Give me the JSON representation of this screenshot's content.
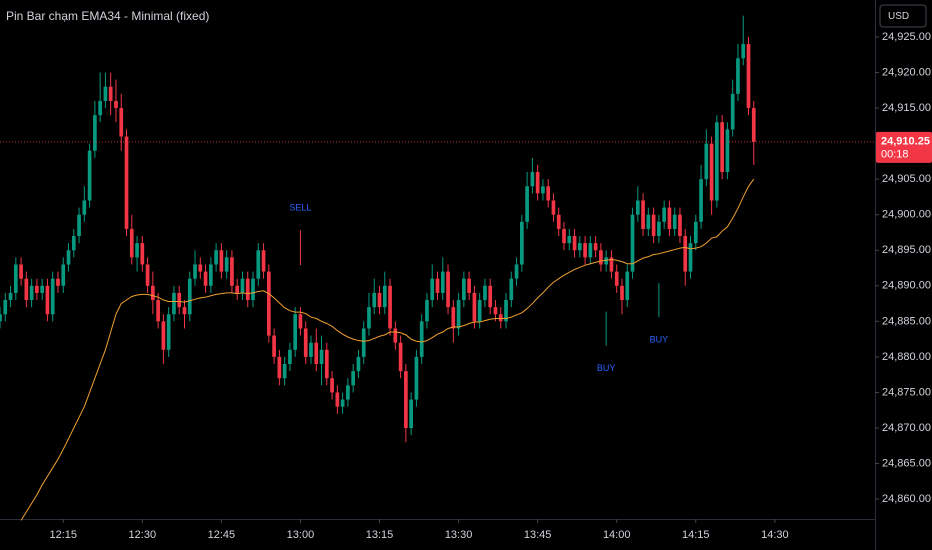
{
  "chart_data": {
    "type": "candlestick",
    "title": "Pin Bar chạm EMA34 - Minimal (fixed)",
    "currency": "USD",
    "x": [
      "12:03",
      "12:04",
      "12:05",
      "12:06",
      "12:07",
      "12:08",
      "12:09",
      "12:10",
      "12:11",
      "12:12",
      "12:13",
      "12:14",
      "12:15",
      "12:16",
      "12:17",
      "12:18",
      "12:19",
      "12:20",
      "12:21",
      "12:22",
      "12:23",
      "12:24",
      "12:25",
      "12:26",
      "12:27",
      "12:28",
      "12:29",
      "12:30",
      "12:31",
      "12:32",
      "12:33",
      "12:34",
      "12:35",
      "12:36",
      "12:37",
      "12:38",
      "12:39",
      "12:40",
      "12:41",
      "12:42",
      "12:43",
      "12:44",
      "12:45",
      "12:46",
      "12:47",
      "12:48",
      "12:49",
      "12:50",
      "12:51",
      "12:52",
      "12:53",
      "12:54",
      "12:55",
      "12:56",
      "12:57",
      "12:58",
      "12:59",
      "13:00",
      "13:01",
      "13:02",
      "13:03",
      "13:04",
      "13:05",
      "13:06",
      "13:07",
      "13:08",
      "13:09",
      "13:10",
      "13:11",
      "13:12",
      "13:13",
      "13:14",
      "13:15",
      "13:16",
      "13:17",
      "13:18",
      "13:19",
      "13:20",
      "13:21",
      "13:22",
      "13:23",
      "13:24",
      "13:25",
      "13:26",
      "13:27",
      "13:28",
      "13:29",
      "13:30",
      "13:31",
      "13:32",
      "13:33",
      "13:34",
      "13:35",
      "13:36",
      "13:37",
      "13:38",
      "13:39",
      "13:40",
      "13:41",
      "13:42",
      "13:43",
      "13:44",
      "13:45",
      "13:46",
      "13:47",
      "13:48",
      "13:49",
      "13:50",
      "13:51",
      "13:52",
      "13:53",
      "13:54",
      "13:55",
      "13:56",
      "13:57",
      "13:58",
      "13:59",
      "14:00",
      "14:01",
      "14:02",
      "14:03",
      "14:04",
      "14:05",
      "14:06",
      "14:07",
      "14:08",
      "14:09",
      "14:10",
      "14:11",
      "14:12",
      "14:13",
      "14:14",
      "14:15",
      "14:16",
      "14:17",
      "14:18",
      "14:19",
      "14:20",
      "14:21",
      "14:22",
      "14:23",
      "14:24",
      "14:25",
      "14:26"
    ],
    "open": [
      24885,
      24886,
      24888,
      24889,
      24893,
      24891,
      24888,
      24890,
      24889,
      24890,
      24886,
      24891,
      24890,
      24893,
      24895,
      24897,
      24900,
      24902,
      24909,
      24914,
      24916,
      24918,
      24916,
      24915,
      24911,
      24898,
      24894,
      24896,
      24893,
      24890,
      24888,
      24885,
      24881,
      24886,
      24889,
      24887,
      24886,
      24891,
      24893,
      24892,
      24890,
      24893,
      24895,
      24892,
      24894,
      24890,
      24889,
      24891,
      24888,
      24891,
      24895,
      24892,
      24883,
      24880,
      24877,
      24879,
      24881,
      24886,
      24884,
      24880,
      24882,
      24879,
      24881,
      24877,
      24875,
      24873,
      24874,
      24876,
      24878,
      24880,
      24884,
      24887,
      24889,
      24887,
      24890,
      24884,
      24882,
      24878,
      24870,
      24874,
      24880,
      24885,
      24888,
      24891,
      24889,
      24892,
      24887,
      24884,
      24888,
      24891,
      24889,
      24885,
      24888,
      24890,
      24887,
      24886,
      24885,
      24888,
      24891,
      24893,
      24899,
      24904,
      24906,
      24903,
      24904,
      24902,
      24900,
      24898,
      24896,
      24897,
      24895,
      24896,
      24894,
      24896,
      24895,
      24893,
      24894,
      24892,
      24890,
      24888,
      24892,
      24900,
      24902,
      24898,
      24900,
      24897,
      24899,
      24901,
      24898,
      24900,
      24897,
      24892,
      24896,
      24899,
      24905,
      24910,
      24902,
      24913,
      24906,
      24912,
      24917,
      24922,
      24924,
      24915
    ],
    "high": [
      24887,
      24889,
      24890,
      24894,
      24894,
      24892,
      24891,
      24891,
      24891,
      24891,
      24892,
      24892,
      24894,
      24896,
      24898,
      24901,
      24904,
      24910,
      24916,
      24920,
      24920,
      24920,
      24919,
      24917,
      24912,
      24900,
      24897,
      24897,
      24894,
      24892,
      24889,
      24886,
      24887,
      24890,
      24890,
      24888,
      24892,
      24895,
      24894,
      24893,
      24894,
      24896,
      24896,
      24895,
      24895,
      24891,
      24892,
      24892,
      24892,
      24896,
      24896,
      24893,
      24884,
      24881,
      24880,
      24882,
      24887,
      24887,
      24885,
      24883,
      24884,
      24883,
      24882,
      24878,
      24876,
      24875,
      24877,
      24879,
      24881,
      24885,
      24889,
      24891,
      24890,
      24892,
      24891,
      24885,
      24883,
      24879,
      24875,
      24881,
      24886,
      24889,
      24893,
      24892,
      24894,
      24893,
      24888,
      24889,
      24892,
      24892,
      24890,
      24889,
      24891,
      24891,
      24888,
      24887,
      24889,
      24892,
      24894,
      24900,
      24906,
      24908,
      24907,
      24905,
      24905,
      24903,
      24901,
      24899,
      24898,
      24898,
      24897,
      24897,
      24897,
      24897,
      24896,
      24895,
      24895,
      24893,
      24891,
      24893,
      24901,
      24904,
      24903,
      24901,
      24901,
      24900,
      24902,
      24902,
      24901,
      24901,
      24898,
      24897,
      24900,
      24907,
      24912,
      24911,
      24914,
      24914,
      24913,
      24919,
      24924,
      24928,
      24925,
      24916
    ],
    "low": [
      24884,
      24885,
      24887,
      24888,
      24890,
      24887,
      24887,
      24888,
      24888,
      24885,
      24885,
      24889,
      24889,
      24892,
      24894,
      24896,
      24899,
      24901,
      24908,
      24913,
      24915,
      24914,
      24913,
      24909,
      24897,
      24893,
      24892,
      24892,
      24889,
      24886,
      24884,
      24879,
      24880,
      24885,
      24886,
      24884,
      24885,
      24890,
      24891,
      24889,
      24889,
      24892,
      24891,
      24891,
      24889,
      24888,
      24888,
      24887,
      24887,
      24890,
      24891,
      24882,
      24879,
      24876,
      24876,
      24878,
      24880,
      24883,
      24879,
      24879,
      24878,
      24876,
      24876,
      24874,
      24872,
      24872,
      24873,
      24875,
      24877,
      24879,
      24883,
      24886,
      24886,
      24886,
      24883,
      24881,
      24877,
      24868,
      24869,
      24873,
      24879,
      24884,
      24887,
      24888,
      24888,
      24886,
      24882,
      24883,
      24887,
      24888,
      24884,
      24884,
      24887,
      24886,
      24885,
      24884,
      24884,
      24887,
      24890,
      24892,
      24898,
      24903,
      24902,
      24902,
      24901,
      24899,
      24897,
      24895,
      24895,
      24894,
      24894,
      24893,
      24893,
      24894,
      24892,
      24892,
      24891,
      24889,
      24886,
      24887,
      24891,
      24899,
      24897,
      24897,
      24896,
      24896,
      24898,
      24897,
      24897,
      24896,
      24890,
      24891,
      24895,
      24898,
      24904,
      24900,
      24901,
      24905,
      24905,
      24911,
      24916,
      24921,
      24914,
      24907
    ],
    "close": [
      24886,
      24888,
      24889,
      24893,
      24891,
      24888,
      24890,
      24889,
      24890,
      24886,
      24891,
      24890,
      24893,
      24895,
      24897,
      24900,
      24902,
      24909,
      24914,
      24916,
      24918,
      24916,
      24915,
      24911,
      24898,
      24894,
      24896,
      24893,
      24890,
      24888,
      24885,
      24881,
      24886,
      24889,
      24887,
      24886,
      24891,
      24893,
      24892,
      24890,
      24893,
      24895,
      24892,
      24894,
      24890,
      24889,
      24891,
      24888,
      24891,
      24895,
      24892,
      24883,
      24880,
      24877,
      24879,
      24881,
      24886,
      24884,
      24880,
      24882,
      24879,
      24881,
      24877,
      24875,
      24873,
      24874,
      24876,
      24878,
      24880,
      24884,
      24887,
      24889,
      24887,
      24890,
      24884,
      24882,
      24878,
      24870,
      24874,
      24880,
      24885,
      24888,
      24891,
      24889,
      24892,
      24887,
      24884,
      24888,
      24891,
      24889,
      24885,
      24888,
      24890,
      24887,
      24886,
      24885,
      24888,
      24891,
      24893,
      24899,
      24904,
      24906,
      24903,
      24904,
      24902,
      24900,
      24898,
      24896,
      24897,
      24895,
      24896,
      24894,
      24896,
      24895,
      24893,
      24894,
      24892,
      24890,
      24888,
      24892,
      24900,
      24902,
      24898,
      24900,
      24897,
      24899,
      24901,
      24898,
      24900,
      24897,
      24892,
      24896,
      24899,
      24905,
      24910,
      24902,
      24913,
      24906,
      24912,
      24917,
      24922,
      24924,
      24915,
      24910.25
    ],
    "up_color": "#089981",
    "down_color": "#f23645",
    "ema_values": [
      null,
      null,
      null,
      null,
      24857,
      24858.2,
      24859.4,
      24860.6,
      24862,
      24863.2,
      24864.4,
      24865.6,
      24867,
      24868.5,
      24870,
      24871.5,
      24873,
      24875,
      24877,
      24879,
      24881,
      24883.5,
      24886,
      24887.5,
      24888,
      24888.5,
      24888.7,
      24888.8,
      24888.8,
      24888.6,
      24888.4,
      24888,
      24887.8,
      24887.8,
      24887.8,
      24887.7,
      24887.9,
      24888.1,
      24888.3,
      24888.4,
      24888.6,
      24888.8,
      24888.9,
      24889,
      24889,
      24888.9,
      24889,
      24888.9,
      24889,
      24889.2,
      24889.3,
      24888.9,
      24888.3,
      24887.6,
      24886.9,
      24886.5,
      24886.3,
      24886.3,
      24886.1,
      24885.6,
      24885.4,
      24885,
      24884.7,
      24884.3,
      24883.7,
      24883.2,
      24882.8,
      24882.5,
      24882.3,
      24882.2,
      24882.3,
      24882.6,
      24882.9,
      24883.1,
      24883.5,
      24883.5,
      24883.4,
      24883.1,
      24882.5,
      24882.2,
      24882.1,
      24882.3,
      24882.7,
      24883.2,
      24883.5,
      24884,
      24884.2,
      24884.2,
      24884.4,
      24884.7,
      24884.9,
      24884.9,
      24885.1,
      24885.3,
      24885.4,
      24885.4,
      24885.4,
      24885.6,
      24885.9,
      24886.2,
      24886.8,
      24887.5,
      24888.3,
      24889,
      24889.8,
      24890.5,
      24891,
      24891.5,
      24891.9,
      24892.3,
      24892.6,
      24892.9,
      24893.1,
      24893.3,
      24893.5,
      24893.6,
      24893.7,
      24893.6,
      24893.4,
      24893.1,
      24893.1,
      24893.5,
      24893.9,
      24894.1,
      24894.4,
      24894.5,
      24894.7,
      24894.9,
      24895.1,
      24895.3,
      24895.4,
      24895.2,
      24895.3,
      24895.5,
      24896,
      24896.7,
      24896.9,
      24897.7,
      24898.3,
      24899.5,
      24900.9,
      24902.5,
      24904,
      24905
    ],
    "ema_color": "#f0a030",
    "signals": [
      {
        "x": "13:00",
        "label": "SELL",
        "line_color": "#f23645",
        "text_color": "#2962ff"
      },
      {
        "x": "13:58",
        "label": "BUY",
        "line_color": "#089981",
        "text_color": "#2962ff"
      },
      {
        "x": "14:08",
        "label": "BUY",
        "line_color": "#089981",
        "text_color": "#2962ff"
      }
    ],
    "last_price": {
      "value": 24910.25,
      "label": "24,910.25",
      "countdown": "00:18",
      "color": "#f23645"
    },
    "ylim": [
      24857.2,
      24930.2
    ],
    "yticks": [
      {
        "value": 24860,
        "label": "24,860.00"
      },
      {
        "value": 24865,
        "label": "24,865.00"
      },
      {
        "value": 24870,
        "label": "24,870.00"
      },
      {
        "value": 24875,
        "label": "24,875.00"
      },
      {
        "value": 24880,
        "label": "24,880.00"
      },
      {
        "value": 24885,
        "label": "24,885.00"
      },
      {
        "value": 24890,
        "label": "24,890.00"
      },
      {
        "value": 24895,
        "label": "24,895.00"
      },
      {
        "value": 24900,
        "label": "24,900.00"
      },
      {
        "value": 24905,
        "label": "24,905.00"
      },
      {
        "value": 24910,
        "label": "24,910.00"
      },
      {
        "value": 24915,
        "label": "24,915.00"
      },
      {
        "value": 24920,
        "label": "24,920.00"
      },
      {
        "value": 24925,
        "label": "24,925.00"
      }
    ],
    "xlim": [
      "12:03",
      "14:49"
    ],
    "xticks": [
      "12:15",
      "12:30",
      "12:45",
      "13:00",
      "13:15",
      "13:30",
      "13:45",
      "14:00",
      "14:15",
      "14:30"
    ]
  }
}
